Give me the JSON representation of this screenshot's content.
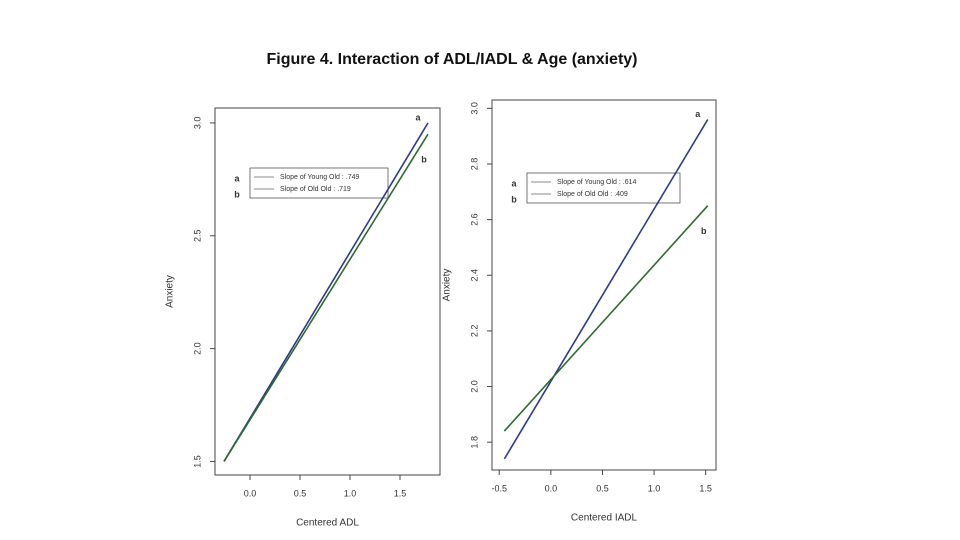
{
  "title": "Figure 4. Interaction of ADL/IADL & Age (anxiety)",
  "chart_data": [
    {
      "type": "line",
      "xlabel": "Centered ADL",
      "ylabel": "Anxiety",
      "xlim": [
        -0.35,
        1.9
      ],
      "ylim": [
        1.44,
        3.066
      ],
      "xticks": [
        {
          "value": 0,
          "label": "0.0"
        },
        0.5,
        {
          "value": 1,
          "label": "1.0"
        },
        1.5
      ],
      "yticks": [
        1.5,
        {
          "value": 2,
          "label": "2.0"
        },
        2.5,
        {
          "value": 3,
          "label": "3.0"
        }
      ],
      "series": [
        {
          "name": "Slope of Young Old : .749",
          "label": "a",
          "color": "#2d3a8c",
          "x": [
            -0.26,
            1.78
          ],
          "values": [
            1.5,
            3.0
          ]
        },
        {
          "name": "Slope of Old Old : .719",
          "label": "b",
          "color": "#2e6b2e",
          "x": [
            -0.26,
            1.78
          ],
          "values": [
            1.5,
            2.95
          ]
        }
      ]
    },
    {
      "type": "line",
      "xlabel": "Centered IADL",
      "ylabel": "Anxiety",
      "xlim": [
        -0.57,
        1.6
      ],
      "ylim": [
        1.7,
        3.03
      ],
      "xticks": [
        -0.5,
        {
          "value": 0,
          "label": "0.0"
        },
        0.5,
        {
          "value": 1,
          "label": "1.0"
        },
        1.5
      ],
      "yticks": [
        1.8,
        {
          "value": 2,
          "label": "2.0"
        },
        2.2,
        2.4,
        2.6,
        2.8,
        {
          "value": 3,
          "label": "3.0"
        }
      ],
      "series": [
        {
          "name": "Slope of Young Old : .614",
          "label": "a",
          "color": "#2d3a8c",
          "x": [
            -0.45,
            1.52
          ],
          "values": [
            1.74,
            2.96
          ]
        },
        {
          "name": "Slope of Old Old : .409",
          "label": "b",
          "color": "#2e6b2e",
          "x": [
            -0.45,
            1.52
          ],
          "values": [
            1.84,
            2.65
          ]
        }
      ]
    }
  ]
}
